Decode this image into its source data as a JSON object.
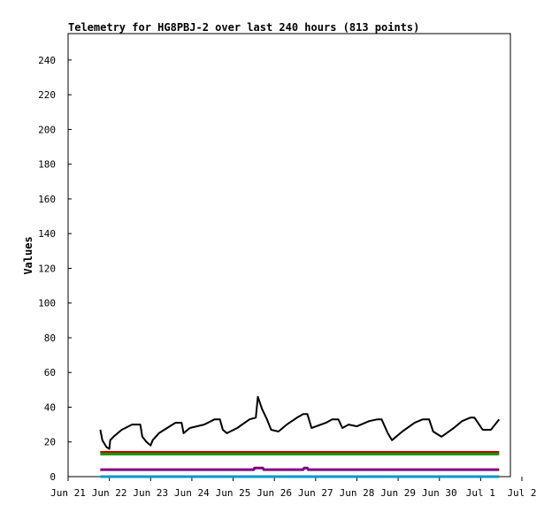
{
  "chart_data": {
    "type": "line",
    "title": "Telemetry for HG8PBJ-2 over last 240 hours (813 points)",
    "xlabel": "",
    "ylabel": "Values",
    "ylim": [
      0,
      255
    ],
    "yticks": [
      0,
      20,
      40,
      60,
      80,
      100,
      120,
      140,
      160,
      180,
      200,
      220,
      240
    ],
    "xlim_days": [
      0,
      10.45
    ],
    "xticks": [
      {
        "label": "Jun 21",
        "day": 0
      },
      {
        "label": "Jun 22",
        "day": 1
      },
      {
        "label": "Jun 23",
        "day": 2
      },
      {
        "label": "Jun 24",
        "day": 3
      },
      {
        "label": "Jun 25",
        "day": 4
      },
      {
        "label": "Jun 26",
        "day": 5
      },
      {
        "label": "Jun 27",
        "day": 6
      },
      {
        "label": "Jun 28",
        "day": 7
      },
      {
        "label": "Jun 29",
        "day": 8
      },
      {
        "label": "Jun 30",
        "day": 9
      },
      {
        "label": "Jul 1",
        "day": 10
      },
      {
        "label": "Jul 2",
        "day": 11
      }
    ],
    "grid": false,
    "legend": "none",
    "series": [
      {
        "color": "#000000",
        "x": [
          0.78,
          0.83,
          0.93,
          1.0,
          1.02,
          1.1,
          1.3,
          1.55,
          1.75,
          1.8,
          1.9,
          2.0,
          2.05,
          2.2,
          2.4,
          2.6,
          2.75,
          2.8,
          2.95,
          3.3,
          3.55,
          3.68,
          3.75,
          3.85,
          4.1,
          4.4,
          4.55,
          4.6,
          4.7,
          4.82,
          4.92,
          5.1,
          5.3,
          5.55,
          5.7,
          5.8,
          5.9,
          6.25,
          6.4,
          6.55,
          6.65,
          6.8,
          7.0,
          7.3,
          7.5,
          7.6,
          7.75,
          7.85,
          8.1,
          8.4,
          8.6,
          8.75,
          8.85,
          9.05,
          9.35,
          9.55,
          9.75,
          9.85,
          10.05,
          10.25,
          10.45
        ],
        "y": [
          27,
          21,
          17,
          16,
          21,
          23,
          27,
          30,
          30,
          23,
          20,
          18,
          21,
          25,
          28,
          31,
          31,
          25,
          28,
          30,
          33,
          33,
          27,
          25,
          28,
          33,
          34,
          46,
          39,
          33,
          27,
          26,
          30,
          34,
          36,
          36,
          28,
          31,
          33,
          33,
          28,
          30,
          29,
          32,
          33,
          33,
          25,
          21,
          26,
          31,
          33,
          33,
          26,
          23,
          28,
          32,
          34,
          34,
          27,
          27,
          33
        ]
      },
      {
        "color": "#cc0000",
        "x": [
          0.78,
          10.45
        ],
        "y": [
          14,
          14
        ]
      },
      {
        "color": "#009900",
        "x": [
          0.78,
          10.45
        ],
        "y": [
          13,
          13
        ]
      },
      {
        "color": "#800080",
        "x": [
          0.78,
          4.5,
          4.52,
          4.72,
          4.74,
          5.7,
          5.72,
          5.8,
          5.82,
          10.45
        ],
        "y": [
          4,
          4,
          5,
          5,
          4,
          4,
          5,
          5,
          4,
          4
        ]
      },
      {
        "color": "#0099cc",
        "x": [
          0.78,
          10.45
        ],
        "y": [
          0,
          0
        ]
      }
    ]
  }
}
